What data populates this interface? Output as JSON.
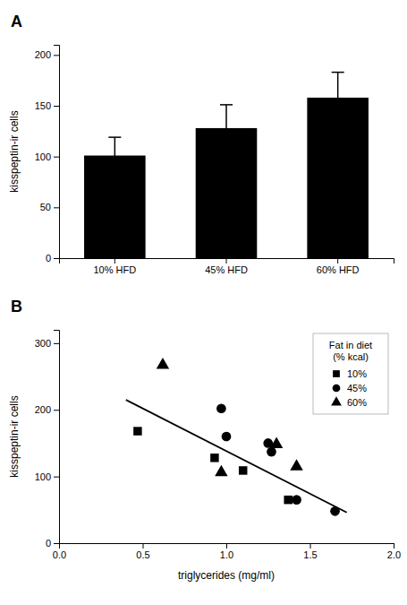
{
  "chart_data": [
    {
      "type": "bar",
      "title": "A",
      "categories": [
        "10% HFD",
        "45% HFD",
        "60% HFD"
      ],
      "values": [
        101,
        128,
        158
      ],
      "errors": [
        18,
        23,
        25
      ],
      "color": "#000000",
      "ylabel": "kisspeptin-ir cells",
      "ylim": [
        0,
        210
      ],
      "yticks": [
        0,
        50,
        100,
        150,
        200
      ],
      "grid": false
    },
    {
      "type": "scatter",
      "title": "B",
      "xlabel": "triglycerides (mg/ml)",
      "ylabel": "kisspeptin-ir cells",
      "series": [
        {
          "name": "10%",
          "marker": "square",
          "color": "#000000",
          "x": [
            0.47,
            0.93,
            1.1,
            1.37
          ],
          "values": [
            168,
            128,
            109,
            65
          ]
        },
        {
          "name": "45%",
          "marker": "circle",
          "color": "#000000",
          "x": [
            0.97,
            1.0,
            1.25,
            1.27,
            1.42,
            1.65
          ],
          "values": [
            202,
            160,
            150,
            137,
            65,
            48
          ]
        },
        {
          "name": "60%",
          "marker": "triangle",
          "color": "#000000",
          "x": [
            0.62,
            0.97,
            1.3,
            1.42
          ],
          "values": [
            267,
            106,
            148,
            115
          ]
        },
        {
          "type": "line",
          "color": "#000000",
          "x": [
            0.4,
            1.72
          ],
          "values": [
            215,
            46
          ]
        }
      ],
      "legend_title": "Fat in diet\n(% kcal)",
      "legend": "upper right",
      "xlim": [
        0.0,
        2.0
      ],
      "ylim": [
        0,
        320
      ],
      "xticks": [
        {
          "value": 0.0,
          "label": "0.0"
        },
        0.5,
        {
          "value": 1.0,
          "label": "1.0"
        },
        1.5,
        {
          "value": 2.0,
          "label": "2.0"
        }
      ],
      "yticks": [
        0,
        100,
        200,
        300
      ],
      "grid": false
    }
  ]
}
